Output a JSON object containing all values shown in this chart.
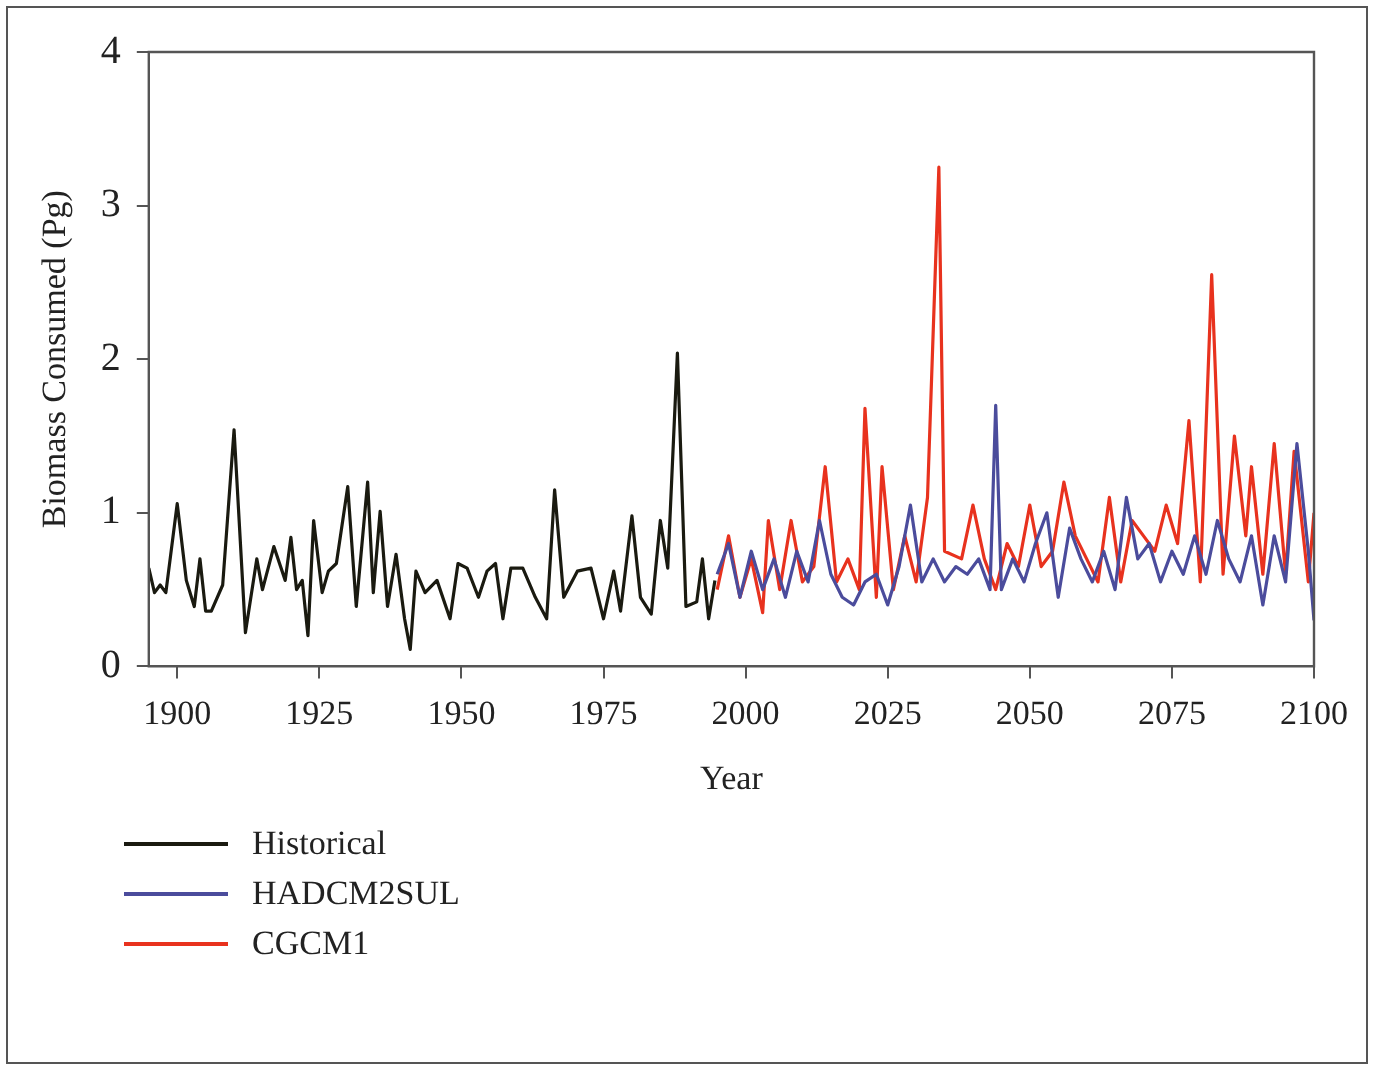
{
  "chart_data": {
    "type": "line",
    "xlabel": "Year",
    "ylabel": "Biomass Consumed (Pg)",
    "xlim": [
      1895,
      2100
    ],
    "xticks": [
      1900,
      1925,
      1950,
      1975,
      2000,
      2025,
      2050,
      2075,
      2100
    ],
    "ylim": [
      0,
      4
    ],
    "yticks": [
      0,
      1,
      2,
      3,
      4
    ],
    "grid": false,
    "legend": "bottom left",
    "marker": "none",
    "line_style": "solid",
    "series": [
      {
        "name": "Historical",
        "color": "#1a1a10",
        "x": [
          1895,
          1896,
          1897,
          1898,
          1900,
          1901.6,
          1903,
          1904,
          1905,
          1906,
          1908,
          1910,
          1912,
          1914,
          1915,
          1917,
          1919,
          1920,
          1921,
          1922,
          1923,
          1924,
          1925.5,
          1926.6,
          1928,
          1930,
          1931.5,
          1933.5,
          1934.5,
          1935.7,
          1937,
          1938.5,
          1940,
          1941,
          1942,
          1943.6,
          1945.7,
          1948,
          1949.4,
          1951,
          1953,
          1954.5,
          1956,
          1957.3,
          1958.7,
          1960.8,
          1963,
          1965,
          1966.4,
          1968,
          1970.4,
          1972.8,
          1975,
          1976.8,
          1978,
          1980,
          1981.5,
          1983.4,
          1985,
          1986.3,
          1988,
          1989.5,
          1991.4,
          1992.4,
          1993.5,
          1994.6
        ],
        "values": [
          0.64,
          0.48,
          0.53,
          0.48,
          1.06,
          0.56,
          0.39,
          0.7,
          0.36,
          0.36,
          0.53,
          1.54,
          0.22,
          0.7,
          0.5,
          0.78,
          0.56,
          0.84,
          0.5,
          0.56,
          0.2,
          0.95,
          0.48,
          0.62,
          0.67,
          1.17,
          0.39,
          1.2,
          0.48,
          1.01,
          0.39,
          0.73,
          0.31,
          0.11,
          0.62,
          0.48,
          0.56,
          0.31,
          0.67,
          0.64,
          0.45,
          0.62,
          0.67,
          0.31,
          0.64,
          0.64,
          0.45,
          0.31,
          1.15,
          0.45,
          0.62,
          0.64,
          0.31,
          0.62,
          0.36,
          0.98,
          0.45,
          0.34,
          0.95,
          0.64,
          2.04,
          0.39,
          0.42,
          0.7,
          0.31,
          0.56
        ]
      },
      {
        "name": "HADCM2SUL",
        "color": "#4b4c9c",
        "x": [
          1995,
          1997,
          1999,
          2001,
          2003,
          2005,
          2007,
          2009,
          2011,
          2013,
          2015,
          2017,
          2019,
          2021,
          2023,
          2025,
          2027,
          2029,
          2031,
          2033,
          2035,
          2037,
          2039,
          2041,
          2043,
          2044,
          2045,
          2047,
          2049,
          2051,
          2053,
          2055,
          2057,
          2059,
          2061,
          2063,
          2065,
          2067,
          2069,
          2071,
          2073,
          2075,
          2077,
          2079,
          2081,
          2083,
          2085,
          2087,
          2089,
          2091,
          2093,
          2095,
          2097,
          2099,
          2100
        ],
        "values": [
          0.6,
          0.8,
          0.45,
          0.75,
          0.5,
          0.7,
          0.45,
          0.75,
          0.55,
          0.95,
          0.6,
          0.45,
          0.4,
          0.55,
          0.6,
          0.4,
          0.65,
          1.05,
          0.55,
          0.7,
          0.55,
          0.65,
          0.6,
          0.7,
          0.5,
          1.7,
          0.5,
          0.7,
          0.55,
          0.8,
          1.0,
          0.45,
          0.9,
          0.7,
          0.55,
          0.75,
          0.5,
          1.1,
          0.7,
          0.8,
          0.55,
          0.75,
          0.6,
          0.85,
          0.6,
          0.95,
          0.7,
          0.55,
          0.85,
          0.4,
          0.85,
          0.55,
          1.45,
          0.75,
          0.3
        ]
      },
      {
        "name": "CGCM1",
        "color": "#e8321e",
        "x": [
          1995,
          1997,
          1999,
          2001,
          2003,
          2004,
          2006,
          2008,
          2010,
          2012,
          2014,
          2016,
          2018,
          2020,
          2021,
          2023,
          2024,
          2026,
          2028,
          2030,
          2032,
          2034,
          2035,
          2038,
          2040,
          2042,
          2044,
          2046,
          2048,
          2050,
          2052,
          2054,
          2056,
          2058,
          2060,
          2062,
          2064,
          2066,
          2068,
          2070,
          2072,
          2074,
          2076,
          2078,
          2080,
          2082,
          2084,
          2086,
          2088,
          2089,
          2091,
          2093,
          2095,
          2096.5,
          2099,
          2100
        ],
        "values": [
          0.5,
          0.85,
          0.45,
          0.7,
          0.35,
          0.95,
          0.5,
          0.95,
          0.55,
          0.65,
          1.3,
          0.55,
          0.7,
          0.5,
          1.68,
          0.45,
          1.3,
          0.5,
          0.85,
          0.55,
          1.1,
          3.25,
          0.75,
          0.7,
          1.05,
          0.7,
          0.5,
          0.8,
          0.65,
          1.05,
          0.65,
          0.75,
          1.2,
          0.85,
          0.7,
          0.55,
          1.1,
          0.55,
          0.95,
          0.85,
          0.75,
          1.05,
          0.8,
          1.6,
          0.55,
          2.55,
          0.6,
          1.5,
          0.85,
          1.3,
          0.6,
          1.45,
          0.6,
          1.4,
          0.55,
          1.0
        ]
      }
    ]
  }
}
